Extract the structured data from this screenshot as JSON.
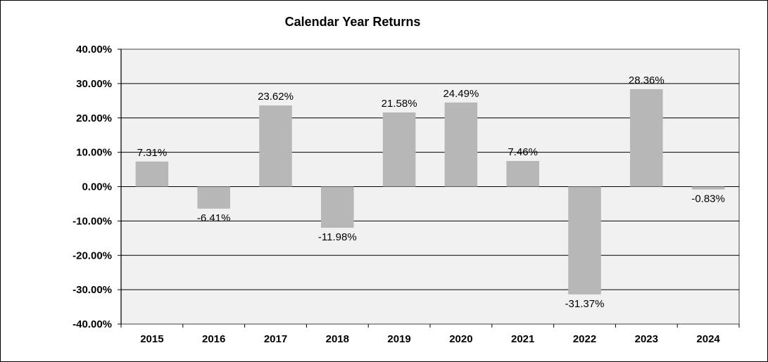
{
  "chart_data": {
    "type": "bar",
    "title": "Calendar Year  Returns",
    "categories": [
      "2015",
      "2016",
      "2017",
      "2018",
      "2019",
      "2020",
      "2021",
      "2022",
      "2023",
      "2024"
    ],
    "values": [
      7.31,
      -6.41,
      23.62,
      -11.98,
      21.58,
      24.49,
      7.46,
      -31.37,
      28.36,
      -0.83
    ],
    "data_labels": [
      "7.31%",
      "-6.41%",
      "23.62%",
      "-11.98%",
      "21.58%",
      "24.49%",
      "7.46%",
      "-31.37%",
      "28.36%",
      "-0.83%"
    ],
    "ylim": [
      -40,
      40
    ],
    "yticks": [
      40,
      30,
      20,
      10,
      0,
      -10,
      -20,
      -30,
      -40
    ],
    "ytick_labels": [
      "40.00%",
      "30.00%",
      "20.00%",
      "10.00%",
      "0.00%",
      "-10.00%",
      "-20.00%",
      "-30.00%",
      "-40.00%"
    ],
    "grid": true,
    "legend": "none",
    "colors": {
      "bar": "#b7b7b7",
      "plot_background": "#f1f1f1",
      "grid": "#000000"
    }
  }
}
